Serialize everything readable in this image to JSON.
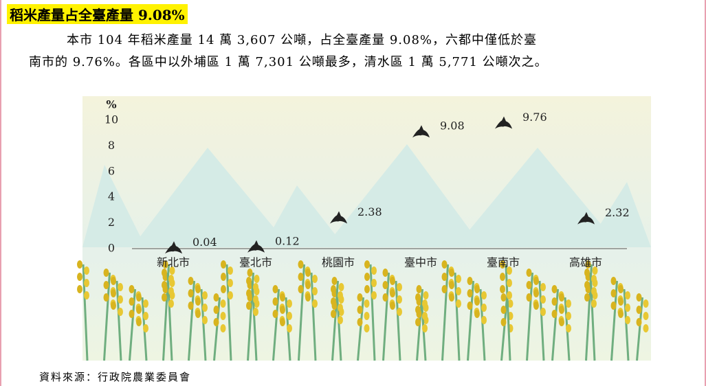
{
  "header": {
    "title": "稻米產量占全臺產量 9.08%"
  },
  "paragraph": [
    "本市 104 年稻米產量 14 萬 3,607 公噸，占全臺產量 9.08%，六都中僅低於臺",
    "南市的 9.76%。各區中以外埔區 1 萬 7,301 公噸最多，清水區 1 萬 5,771 公噸次之。"
  ],
  "chart_data": {
    "type": "scatter",
    "y_label": "%",
    "categories": [
      "新北市",
      "臺北市",
      "桃園市",
      "臺中市",
      "臺南市",
      "高雄市"
    ],
    "values": [
      0.04,
      0.12,
      2.38,
      9.08,
      9.76,
      2.32
    ],
    "color": "#222222",
    "ylim": [
      0,
      10
    ],
    "yticks": [
      0,
      2,
      4,
      6,
      8,
      10
    ]
  },
  "source": "資料來源：行政院農業委員會"
}
